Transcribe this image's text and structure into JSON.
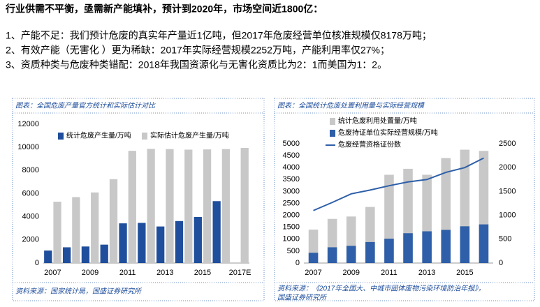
{
  "header": {
    "title": "行业供需不平衡，亟需新产能填补，预计到2020年，市场空间近1800亿：",
    "points": [
      "1、产能不足：我们预计危废的真实年产量近1亿吨，但2017年危废经营单位核准规模仅8178万吨；",
      "2、有效产能（无害化 ）更为稀缺：2017年实际经营规模2252万吨，产能利用率仅27%；",
      "3、资质种类与危废种类错配：2018年我国资源化与无害化资质比为2：1而美国为1：2。"
    ]
  },
  "chart_data": [
    {
      "type": "bar",
      "title": "图表：全国危废产量官方统计和实际估计对比",
      "source": "资料来源：国家统计局，国盛证券研究所",
      "categories": [
        "2007",
        null,
        "2009",
        null,
        "2011",
        null,
        "2013",
        null,
        "2015",
        null,
        "2017E"
      ],
      "series": [
        {
          "name": "统计危废产生量/万吨",
          "color": "#1f4e9c",
          "type": "bar",
          "values": [
            1080,
            1360,
            1430,
            1590,
            3430,
            3470,
            3160,
            3630,
            3980,
            5350,
            null
          ]
        },
        {
          "name": "实际估计危废产生量/万吨",
          "color": "#c8c8c8",
          "type": "bar",
          "values": [
            5300,
            5700,
            6100,
            7250,
            9700,
            9870,
            9850,
            9800,
            9820,
            9850,
            9950
          ]
        }
      ],
      "ylim": [
        0,
        12000
      ],
      "yticks": [
        0,
        2000,
        4000,
        6000,
        8000,
        10000,
        12000
      ]
    },
    {
      "type": "bar",
      "title": "图表：全国统计危废处置利用量与实际经营规模",
      "source": [
        "资料来源：《2017年全国大、中城市固体废物污染环境防治年报》，",
        "国盛证券研究所"
      ],
      "categories": [
        "2007",
        null,
        "2009",
        null,
        "2011",
        null,
        "2013",
        null,
        "2015",
        null
      ],
      "series": [
        {
          "name": "统计危废利用处置量/万吨",
          "color": "#c8c8c8",
          "type": "bar",
          "values": [
            1400,
            1850,
            1950,
            2350,
            3700,
            3950,
            3700,
            4400,
            4750,
            4700
          ]
        },
        {
          "name": "危废持证单位实际经营规模/万吨",
          "color": "#2e5fa8",
          "type": "bar",
          "values": [
            430,
            660,
            720,
            880,
            1020,
            1250,
            1330,
            1390,
            1540,
            1620
          ]
        },
        {
          "name": "危废经营资格证份数",
          "color": "#2e5fa8",
          "type": "line",
          "axis": "y2",
          "values": [
            1100,
            1270,
            1450,
            1530,
            1620,
            1700,
            1750,
            1900,
            2000,
            2200
          ]
        }
      ],
      "ylim": [
        0,
        5000
      ],
      "yticks": [
        0,
        500,
        1000,
        1500,
        2000,
        2500,
        3000,
        3500,
        4000,
        4500,
        5000
      ],
      "y2lim": [
        0,
        2500
      ],
      "y2ticks": [
        0,
        500,
        1000,
        1500,
        2000,
        2500
      ]
    }
  ]
}
